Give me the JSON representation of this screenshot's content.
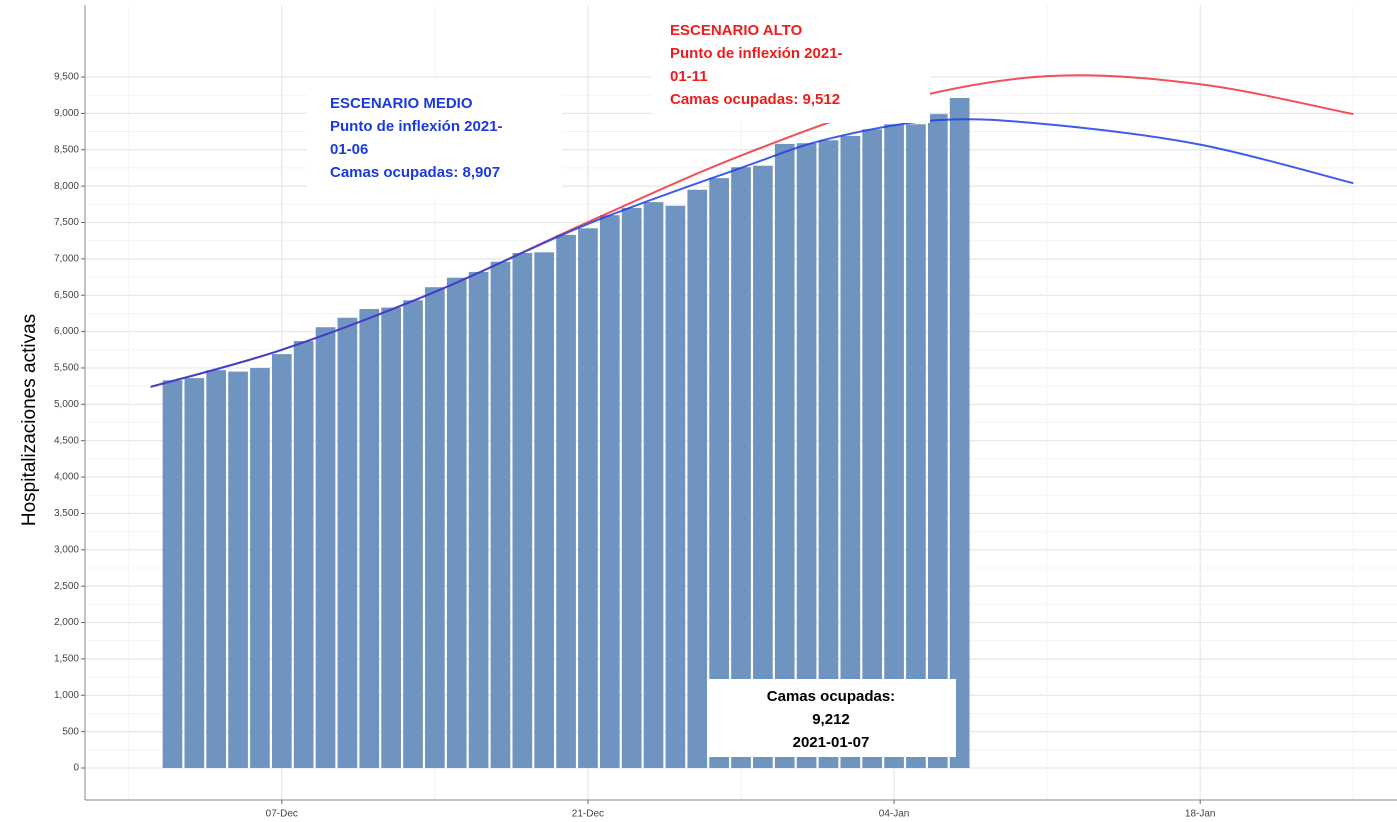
{
  "chart_data": {
    "type": "bar",
    "y_label": "Hospitalizaciones activas",
    "x": [
      "02-Dec",
      "03-Dec",
      "04-Dec",
      "05-Dec",
      "06-Dec",
      "07-Dec",
      "08-Dec",
      "09-Dec",
      "10-Dec",
      "11-Dec",
      "12-Dec",
      "13-Dec",
      "14-Dec",
      "15-Dec",
      "16-Dec",
      "17-Dec",
      "18-Dec",
      "19-Dec",
      "20-Dec",
      "21-Dec",
      "22-Dec",
      "23-Dec",
      "24-Dec",
      "25-Dec",
      "26-Dec",
      "27-Dec",
      "28-Dec",
      "29-Dec",
      "30-Dec",
      "31-Dec",
      "01-Jan",
      "02-Jan",
      "03-Jan",
      "04-Jan",
      "05-Jan",
      "06-Jan",
      "07-Jan"
    ],
    "values": [
      5330,
      5360,
      5470,
      5450,
      5500,
      5690,
      5870,
      6060,
      6190,
      6310,
      6330,
      6430,
      6610,
      6740,
      6820,
      6960,
      7080,
      7090,
      7330,
      7420,
      7600,
      7700,
      7780,
      7730,
      7950,
      8110,
      8260,
      8280,
      8580,
      8590,
      8630,
      8690,
      8780,
      8850,
      8850,
      8990,
      9212
    ],
    "color": "#7094c0",
    "lines": [
      {
        "color": "#ee3338",
        "x": [
          "01-Dec",
          "07-Dec",
          "14-Dec",
          "21-Dec",
          "28-Dec",
          "04-Jan",
          "11-Jan",
          "18-Jan",
          "25-Jan"
        ],
        "values": [
          5240,
          5750,
          6545,
          7505,
          8420,
          9150,
          9512,
          9400,
          8990
        ]
      },
      {
        "color": "#2040e8",
        "x": [
          "01-Dec",
          "07-Dec",
          "14-Dec",
          "21-Dec",
          "28-Dec",
          "01-Jan",
          "06-Jan",
          "11-Jan",
          "18-Jan",
          "25-Jan"
        ],
        "values": [
          5240,
          5750,
          6545,
          7480,
          8250,
          8650,
          8907,
          8850,
          8570,
          8040
        ]
      }
    ],
    "xlim": [
      "28-Nov",
      "27-Jan"
    ],
    "xticks": [
      "07-Dec",
      "21-Dec",
      "04-Jan",
      "18-Jan"
    ],
    "ylim": [
      -440,
      10490
    ],
    "yticks": [
      0,
      {
        "value": 500,
        "label": "500"
      },
      {
        "value": 1000,
        "label": "1,000"
      },
      {
        "value": 1500,
        "label": "1,500"
      },
      {
        "value": 2000,
        "label": "2,000"
      },
      {
        "value": 2500,
        "label": "2,500"
      },
      {
        "value": 3000,
        "label": "3,000"
      },
      {
        "value": 3500,
        "label": "3,500"
      },
      {
        "value": 4000,
        "label": "4,000"
      },
      {
        "value": 4500,
        "label": "4,500"
      },
      {
        "value": 5000,
        "label": "5,000"
      },
      {
        "value": 5500,
        "label": "5,500"
      },
      {
        "value": 6000,
        "label": "6,000"
      },
      {
        "value": 6500,
        "label": "6,500"
      },
      {
        "value": 7000,
        "label": "7,000"
      },
      {
        "value": 7500,
        "label": "7,500"
      },
      {
        "value": 8000,
        "label": "8,000"
      },
      {
        "value": 8500,
        "label": "8,500"
      },
      {
        "value": 9000,
        "label": "9,000"
      },
      {
        "value": 9500,
        "label": "9,500"
      }
    ],
    "grid": true,
    "annotations": [
      {
        "color": "#1a3ae0",
        "lines": [
          "ESCENARIO MEDIO",
          "Punto de inflexión 2021-",
          "01-06",
          "Camas ocupadas: 8,907"
        ]
      },
      {
        "color": "#ee1c1c",
        "lines": [
          "ESCENARIO ALTO",
          "Punto de inflexión 2021-",
          "01-11",
          "Camas ocupadas: 9,512"
        ]
      },
      {
        "color": "#000000",
        "lines": [
          "Camas ocupadas:",
          "9,212",
          "2021-01-07"
        ]
      }
    ]
  }
}
